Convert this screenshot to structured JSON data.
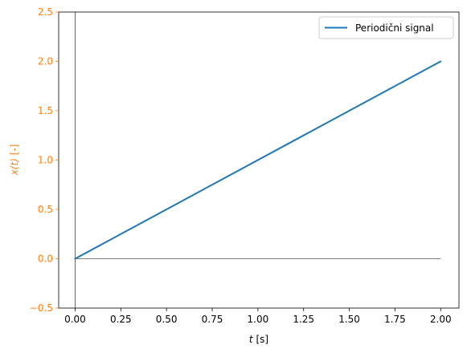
{
  "chart_data": {
    "type": "line",
    "title": "",
    "xlabel_var": "t",
    "xlabel_unit": " [s]",
    "ylabel_var": "x(t)",
    "ylabel_unit": " [-]",
    "xlim": [
      -0.09,
      2.1
    ],
    "ylim": [
      -0.5,
      2.5
    ],
    "xticks": [
      0.0,
      0.25,
      0.5,
      0.75,
      1.0,
      1.25,
      1.5,
      1.75,
      2.0
    ],
    "xtick_labels": [
      "0.00",
      "0.25",
      "0.50",
      "0.75",
      "1.00",
      "1.25",
      "1.50",
      "1.75",
      "2.00"
    ],
    "yticks": [
      -0.5,
      0.0,
      0.5,
      1.0,
      1.5,
      2.0,
      2.5
    ],
    "ytick_labels": [
      "−0.5",
      "0.0",
      "0.5",
      "1.0",
      "1.5",
      "2.0",
      "2.5"
    ],
    "reference_lines": {
      "y": 0,
      "x": 0,
      "color": "#000000"
    },
    "grid": false,
    "legend_position": "top-right",
    "y_axis_color": "#ff7f0e",
    "series": [
      {
        "name": "Periodični signal",
        "color": "#1f77b4",
        "x": [
          0.0,
          2.0
        ],
        "y": [
          0.0,
          2.0
        ]
      }
    ]
  }
}
